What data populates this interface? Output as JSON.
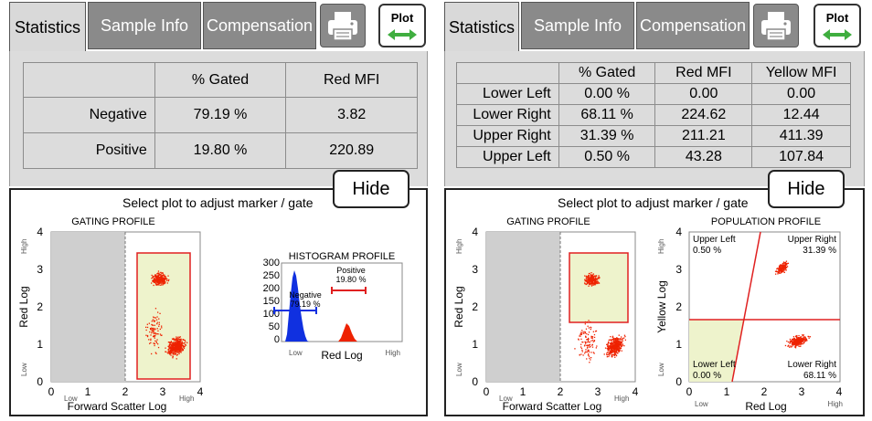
{
  "left": {
    "tabs": [
      {
        "label": "Statistics",
        "active": true
      },
      {
        "label": "Sample Info",
        "active": false
      },
      {
        "label": "Compensation",
        "active": false
      }
    ],
    "plot_button_label": "Plot",
    "stats": {
      "headers": [
        "",
        "% Gated",
        "Red MFI"
      ],
      "rows": [
        {
          "label": "Negative",
          "gated": "79.19 %",
          "red_mfi": "3.82"
        },
        {
          "label": "Positive",
          "gated": "19.80 %",
          "red_mfi": "220.89"
        }
      ]
    },
    "hide_label": "Hide",
    "instruction": "Select plot to adjust marker / gate",
    "gating_title": "GATING PROFILE",
    "gating_xlabel": "Forward Scatter Log",
    "gating_ylabel": "Red Log",
    "histogram_title": "HISTOGRAM PROFILE",
    "histogram_xlabel": "Red Log",
    "histogram_negative_label": "Negative",
    "histogram_negative_value": "79.19 %",
    "histogram_positive_label": "Positive",
    "histogram_positive_value": "19.80 %"
  },
  "right": {
    "tabs": [
      {
        "label": "Statistics",
        "active": true
      },
      {
        "label": "Sample Info",
        "active": false
      },
      {
        "label": "Compensation",
        "active": false
      }
    ],
    "plot_button_label": "Plot",
    "stats": {
      "headers": [
        "",
        "% Gated",
        "Red MFI",
        "Yellow MFI"
      ],
      "rows": [
        {
          "label": "Lower Left",
          "gated": "0.00 %",
          "red_mfi": "0.00",
          "yellow_mfi": "0.00"
        },
        {
          "label": "Lower Right",
          "gated": "68.11 %",
          "red_mfi": "224.62",
          "yellow_mfi": "12.44"
        },
        {
          "label": "Upper Right",
          "gated": "31.39 %",
          "red_mfi": "211.21",
          "yellow_mfi": "411.39"
        },
        {
          "label": "Upper Left",
          "gated": "0.50 %",
          "red_mfi": "43.28",
          "yellow_mfi": "107.84"
        }
      ]
    },
    "hide_label": "Hide",
    "instruction": "Select plot to adjust marker / gate",
    "gating_title": "GATING PROFILE",
    "gating_xlabel": "Forward Scatter Log",
    "gating_ylabel": "Red Log",
    "population_title": "POPULATION PROFILE",
    "population_xlabel": "Red Log",
    "population_ylabel": "Yellow Log",
    "quadrants": {
      "upper_left_label": "Upper Left",
      "upper_left_value": "0.50 %",
      "upper_right_label": "Upper Right",
      "upper_right_value": "31.39 %",
      "lower_left_label": "Lower Left",
      "lower_left_value": "0.00 %",
      "lower_right_label": "Lower Right",
      "lower_right_value": "68.11 %"
    }
  },
  "axis": {
    "ticks": [
      "0",
      "1",
      "2",
      "3",
      "4"
    ],
    "low": "Low",
    "high": "High",
    "hist_yticks": [
      "300",
      "250",
      "200",
      "150",
      "100",
      "50",
      "0"
    ]
  },
  "colors": {
    "tab_inactive": "#8a8a8a",
    "tab_active": "#d9d9d9",
    "gate_red": "#e02020",
    "event_red": "#ee2200",
    "negative_blue": "#1030e0",
    "gate_fill": "#eef3cc"
  }
}
